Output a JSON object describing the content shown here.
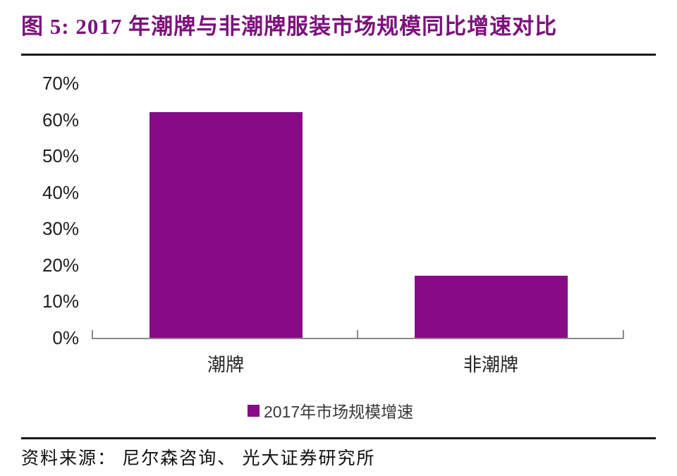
{
  "title": "图 5: 2017 年潮牌与非潮牌服装市场规模同比增速对比",
  "source": "资料来源： 尼尔森咨询、 光大证券研究所",
  "colors": {
    "bar": "#870B87",
    "title": "#7B117B",
    "axis": "#8a8a8a",
    "tick_text": "#1f1f1f",
    "legend_text": "#3a3a3a",
    "rule": "#1a1a1a"
  },
  "legend": {
    "label": "2017年市场规模增速",
    "swatch_color": "#870B87",
    "position": "bottom-center"
  },
  "chart_data": {
    "type": "bar",
    "categories": [
      "潮牌",
      "非潮牌"
    ],
    "values": [
      62,
      17
    ],
    "series_name": "2017年市场规模增速",
    "unit": "%",
    "title": "2017 年潮牌与非潮牌服装市场规模同比增速对比",
    "xlabel": "",
    "ylabel": "",
    "ylim": [
      0,
      70
    ],
    "ytick_step": 10,
    "yticks": [
      "0%",
      "10%",
      "20%",
      "30%",
      "40%",
      "50%",
      "60%",
      "70%"
    ],
    "grid": false,
    "legend_position": "bottom"
  }
}
